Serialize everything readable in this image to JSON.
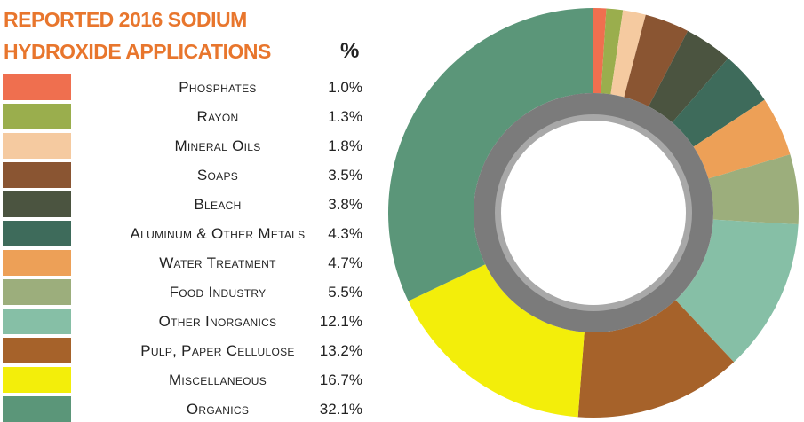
{
  "chart_data": {
    "type": "donut",
    "title": "REPORTED 2016 SODIUM HYDROXIDE APPLICATIONS",
    "value_header": "%",
    "categories": [
      "Phosphates",
      "Rayon",
      "Mineral Oils",
      "Soaps",
      "Bleach",
      "Aluminum & Other Metals",
      "Water Treatment",
      "Food Industry",
      "Other Inorganics",
      "Pulp, Paper Cellulose",
      "Miscellaneous",
      "Organics"
    ],
    "values": [
      1.0,
      1.3,
      1.8,
      3.5,
      3.8,
      4.3,
      4.7,
      5.5,
      12.1,
      13.2,
      16.7,
      32.1
    ],
    "value_labels": [
      "1.0%",
      "1.3%",
      "1.8%",
      "3.5%",
      "3.8%",
      "4.3%",
      "4.7%",
      "5.5%",
      "12.1%",
      "13.2%",
      "16.7%",
      "32.1%"
    ],
    "colors": [
      "#ef6f4f",
      "#9aae4d",
      "#f5caa0",
      "#8a5532",
      "#4b5440",
      "#3e6b5b",
      "#eda057",
      "#9cae7c",
      "#86bfa6",
      "#a6622a",
      "#f3ee0a",
      "#5b9679"
    ]
  }
}
